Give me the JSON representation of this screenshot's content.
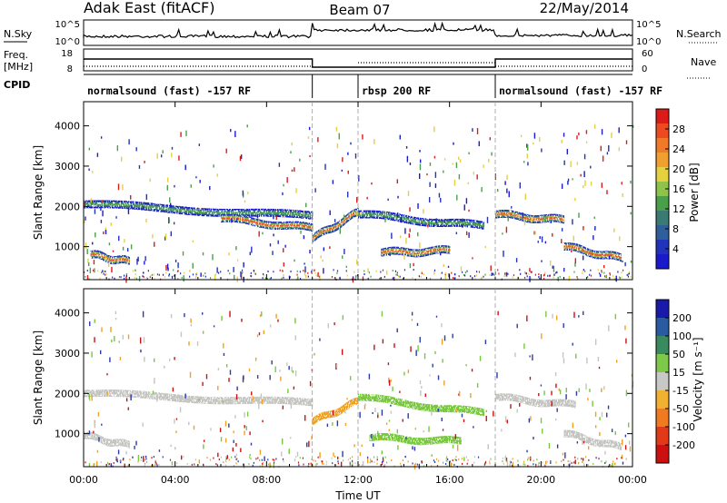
{
  "header": {
    "title": "Adak East (fitACF)",
    "beam": "Beam 07",
    "date": "22/May/2014"
  },
  "top_strips": {
    "nsky_label": "N.Sky",
    "nsky_ticks": [
      "10^5",
      "10^0"
    ],
    "nsearch_label": "N.Search",
    "nsearch_ticks": [
      "10^5",
      "10^0"
    ],
    "freq_label": "Freq.",
    "freq_unit": "[MHz]",
    "freq_ticks": [
      "18",
      "8"
    ],
    "nave_label": "Nave",
    "nave_ticks": [
      "60",
      "0"
    ],
    "cpid_label": "CPID",
    "cpid_segments": [
      "normalsound (fast) -157 RF",
      "rbsp 200 RF",
      "normalsound (fast) -157 RF"
    ],
    "cpid_boundaries_hours": [
      10,
      18
    ]
  },
  "chart_data": [
    {
      "type": "heatmap",
      "panel": "power",
      "ylabel": "Slant Range [km]",
      "y_ticks": [
        "1000",
        "2000",
        "3000",
        "4000"
      ],
      "ylim": [
        180,
        4600
      ],
      "xlim": [
        0,
        24
      ],
      "colorbar_label": "Power [dB]",
      "colorbar_ticks": [
        "4",
        "8",
        "12",
        "16",
        "20",
        "24",
        "28"
      ],
      "colorbar_range": [
        0,
        32
      ],
      "colorbar_colors": [
        "#1a1acc",
        "#2233bb",
        "#2f5f9a",
        "#3a7a73",
        "#4aa04a",
        "#8fc24a",
        "#e5d040",
        "#f0a030",
        "#f07a28",
        "#ee4a22",
        "#dd1a1a"
      ],
      "bands": [
        {
          "from": 0,
          "to": 10,
          "y_start": 2050,
          "y_end": 1750,
          "level": "medium"
        },
        {
          "from": 6,
          "to": 10,
          "y_start": 1700,
          "y_end": 1450,
          "level": "high"
        },
        {
          "from": 10,
          "to": 12,
          "y_start": 1200,
          "y_end": 1850,
          "level": "high"
        },
        {
          "from": 12,
          "to": 17.5,
          "y_start": 1800,
          "y_end": 1500,
          "level": "medium"
        },
        {
          "from": 13,
          "to": 16,
          "y_start": 850,
          "y_end": 900,
          "level": "high"
        },
        {
          "from": 18,
          "to": 21,
          "y_start": 1800,
          "y_end": 1650,
          "level": "high"
        },
        {
          "from": 21,
          "to": 23.5,
          "y_start": 1000,
          "y_end": 700,
          "level": "high"
        },
        {
          "from": 0.3,
          "to": 2,
          "y_start": 800,
          "y_end": 620,
          "level": "high"
        }
      ]
    },
    {
      "type": "heatmap",
      "panel": "velocity",
      "ylabel": "Slant Range [km]",
      "y_ticks": [
        "1000",
        "2000",
        "3000",
        "4000"
      ],
      "ylim": [
        180,
        4600
      ],
      "xlim": [
        0,
        24
      ],
      "x_ticks": [
        "00:00",
        "04:00",
        "08:00",
        "12:00",
        "16:00",
        "20:00",
        "00:00"
      ],
      "xlabel": "Time UT",
      "colorbar_label": "Velocity [m s⁻¹]",
      "colorbar_ticks": [
        "200",
        "100",
        "50",
        "15",
        "-15",
        "-50",
        "-100",
        "-200"
      ],
      "colorbar_colors": [
        "#1a1aaa",
        "#2a5aa0",
        "#3a8a60",
        "#7ec84a",
        "#c8c8c4",
        "#f0b030",
        "#f07a20",
        "#e03a18",
        "#cc1010"
      ],
      "features": [
        {
          "from": 0,
          "to": 10,
          "y_start": 2000,
          "y_end": 1750,
          "color": "gray"
        },
        {
          "from": 0,
          "to": 2,
          "y_start": 950,
          "y_end": 700,
          "color": "gray"
        },
        {
          "from": 10,
          "to": 12,
          "y_start": 1300,
          "y_end": 1800,
          "color": "orange"
        },
        {
          "from": 12,
          "to": 17.5,
          "y_start": 1900,
          "y_end": 1500,
          "color": "green"
        },
        {
          "from": 12.5,
          "to": 16.5,
          "y_start": 900,
          "y_end": 800,
          "color": "green"
        },
        {
          "from": 18,
          "to": 21.5,
          "y_start": 1900,
          "y_end": 1700,
          "color": "gray"
        },
        {
          "from": 21,
          "to": 23.5,
          "y_start": 1000,
          "y_end": 650,
          "color": "gray"
        }
      ]
    }
  ]
}
